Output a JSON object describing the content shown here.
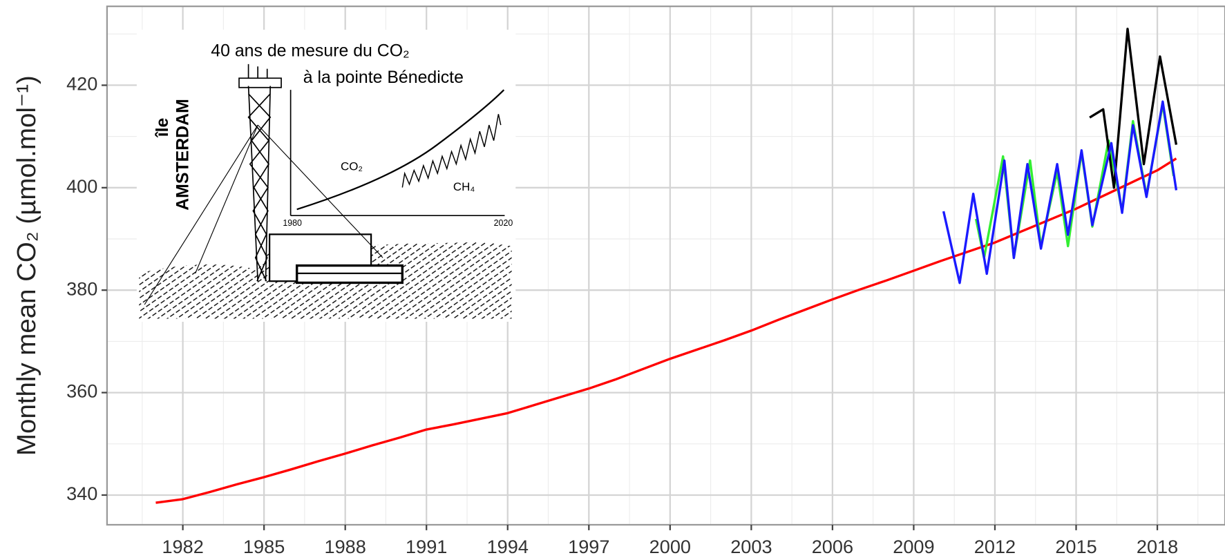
{
  "chart_data": {
    "type": "line",
    "y_label": "Monthly mean  CO₂ (µmol.mol⁻¹)",
    "xlim": [
      1979.2,
      2020.5
    ],
    "xticks": [
      1982,
      1985,
      1988,
      1991,
      1994,
      1997,
      2000,
      2003,
      2006,
      2009,
      2012,
      2015,
      2018
    ],
    "ylim": [
      334.2,
      435.4
    ],
    "yticks": [
      340,
      360,
      380,
      400,
      420
    ],
    "grid": "major-minor",
    "annotations": [
      "40 ans de mesure du CO₂",
      "à la pointe Bénedicte",
      "île",
      "AMSTERDAM",
      "CO₂",
      "CH₄",
      "1980",
      "2020"
    ],
    "series": [
      {
        "color": "#ff0000",
        "x": [
          1981,
          1982,
          1983,
          1984,
          1985,
          1986,
          1987,
          1988,
          1989,
          1990,
          1991,
          1992,
          1993,
          1994,
          1995,
          1996,
          1997,
          1998,
          1999,
          2000,
          2001,
          2002,
          2003,
          2004,
          2005,
          2006,
          2007,
          2008,
          2009,
          2010,
          2011,
          2012,
          2013,
          2014,
          2015,
          2016,
          2017,
          2018,
          2018.7
        ],
        "values": [
          338.5,
          339.2,
          340.6,
          342.1,
          343.5,
          345.0,
          346.6,
          348.1,
          349.7,
          351.2,
          352.8,
          353.8,
          354.9,
          356.0,
          357.6,
          359.2,
          360.8,
          362.6,
          364.6,
          366.6,
          368.4,
          370.2,
          372.1,
          374.2,
          376.2,
          378.2,
          380.1,
          381.9,
          383.8,
          385.7,
          387.5,
          389.3,
          391.5,
          393.7,
          395.9,
          398.4,
          400.9,
          403.4,
          405.7
        ]
      },
      {
        "color": "#33ee33",
        "x": [
          2011.3,
          2011.6,
          2012.3,
          2012.7,
          2013.3,
          2013.7,
          2014.3,
          2014.7,
          2015.2,
          2015.6,
          2016.2,
          2016.7,
          2017.1,
          2017.6,
          2018.2,
          2018.6
        ],
        "values": [
          393.9,
          386.3,
          406.1,
          386.3,
          405.3,
          388.6,
          403.1,
          388.6,
          406.9,
          392.4,
          409.2,
          395.4,
          413.0,
          398.5,
          416.3,
          402.3
        ]
      },
      {
        "color": "#000000",
        "x": [
          2015.5,
          2016.0,
          2016.4,
          2016.9,
          2017.5,
          2018.1,
          2018.7
        ],
        "values": [
          413.7,
          415.3,
          400.0,
          431.0,
          404.6,
          425.6,
          408.4
        ]
      },
      {
        "color": "#1a1aff",
        "x": [
          2010.1,
          2010.7,
          2011.2,
          2011.7,
          2012.35,
          2012.7,
          2013.2,
          2013.7,
          2014.3,
          2014.7,
          2015.2,
          2015.6,
          2016.3,
          2016.7,
          2017.1,
          2017.6,
          2018.2,
          2018.7
        ],
        "values": [
          395.4,
          381.4,
          398.8,
          383.2,
          405.3,
          386.3,
          404.6,
          388.1,
          404.6,
          390.8,
          407.3,
          392.7,
          408.7,
          395.1,
          412.2,
          398.2,
          416.8,
          399.5
        ]
      }
    ]
  }
}
